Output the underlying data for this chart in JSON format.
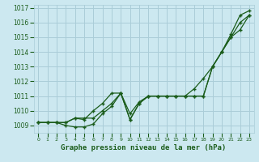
{
  "xlabel": "Graphe pression niveau de la mer (hPa)",
  "bg_color": "#cce8f0",
  "grid_color": "#aacdd8",
  "line_color": "#1a5c1a",
  "text_color": "#1a5c1a",
  "x_values": [
    0,
    1,
    2,
    3,
    4,
    5,
    6,
    7,
    8,
    9,
    10,
    11,
    12,
    13,
    14,
    15,
    16,
    17,
    18,
    19,
    20,
    21,
    22,
    23
  ],
  "series1": [
    1009.2,
    1009.2,
    1009.2,
    1009.0,
    1008.9,
    1008.9,
    1009.1,
    1009.8,
    1010.3,
    1011.2,
    1009.4,
    1010.5,
    1011.0,
    1011.0,
    1011.0,
    1011.0,
    1011.0,
    1011.0,
    1011.0,
    1013.0,
    1014.0,
    1015.0,
    1016.0,
    1016.5
  ],
  "series2": [
    1009.2,
    1009.2,
    1009.2,
    1009.2,
    1009.5,
    1009.5,
    1009.5,
    1010.0,
    1010.5,
    1011.2,
    1009.4,
    1010.5,
    1011.0,
    1011.0,
    1011.0,
    1011.0,
    1011.0,
    1011.5,
    1012.2,
    1013.0,
    1014.0,
    1015.0,
    1015.5,
    1016.5
  ],
  "series3": [
    1009.2,
    1009.2,
    1009.2,
    1009.2,
    1009.5,
    1009.4,
    1010.0,
    1010.5,
    1011.2,
    1011.2,
    1009.8,
    1010.6,
    1011.0,
    1011.0,
    1011.0,
    1011.0,
    1011.0,
    1011.0,
    1011.0,
    1013.0,
    1014.0,
    1015.2,
    1016.5,
    1016.8
  ],
  "ylim_min": 1008.5,
  "ylim_max": 1017.2,
  "yticks": [
    1009,
    1010,
    1011,
    1012,
    1013,
    1014,
    1015,
    1016,
    1017
  ]
}
